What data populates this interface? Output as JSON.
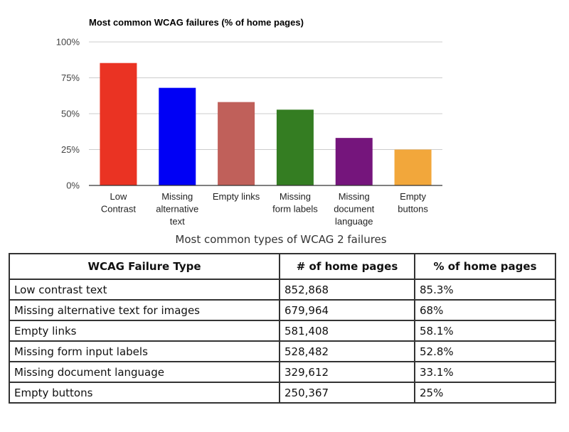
{
  "chart_data": {
    "type": "bar",
    "title": "Most common WCAG failures (% of home pages)",
    "categories": [
      [
        "Low",
        "Contrast"
      ],
      [
        "Missing",
        "alternative",
        "text"
      ],
      [
        "Empty links"
      ],
      [
        "Missing",
        "form labels"
      ],
      [
        "Missing",
        "document",
        "language"
      ],
      [
        "Empty",
        "buttons"
      ]
    ],
    "values": [
      85.3,
      68,
      58.1,
      52.8,
      33.1,
      25
    ],
    "colors": [
      "#ea3323",
      "#0000f5",
      "#c0605a",
      "#347d22",
      "#75157c",
      "#f2a73b"
    ],
    "ylim": [
      0,
      100
    ],
    "yticks": [
      0,
      25,
      50,
      75,
      100
    ],
    "ytick_labels": [
      "0%",
      "25%",
      "50%",
      "75%",
      "100%"
    ],
    "xlabel": "",
    "ylabel": "",
    "grid": true,
    "legend": "none"
  },
  "caption": "Most common types of WCAG 2 failures",
  "table": {
    "headers": [
      "WCAG Failure Type",
      "# of home pages",
      "% of home pages"
    ],
    "rows": [
      [
        "Low contrast text",
        "852,868",
        "85.3%"
      ],
      [
        "Missing alternative text for images",
        "679,964",
        "68%"
      ],
      [
        "Empty links",
        "581,408",
        "58.1%"
      ],
      [
        "Missing form input labels",
        "528,482",
        "52.8%"
      ],
      [
        "Missing document language",
        "329,612",
        "33.1%"
      ],
      [
        "Empty buttons",
        "250,367",
        "25%"
      ]
    ]
  }
}
